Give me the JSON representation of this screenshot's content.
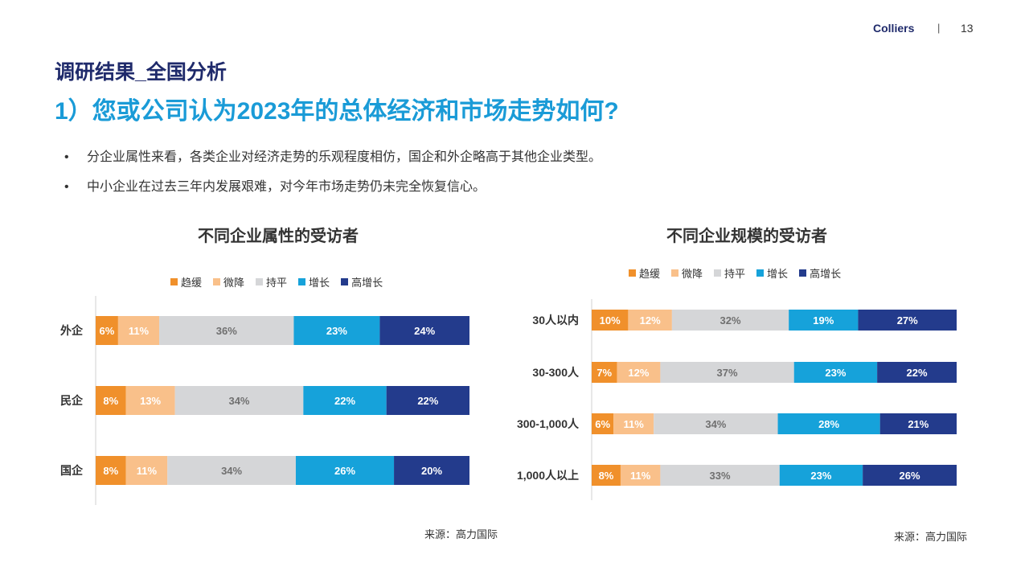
{
  "header": {
    "brand": "Colliers",
    "separator": "|",
    "page_number": "13"
  },
  "subtitle": "调研结果_全国分析",
  "question": "1）您或公司认为2023年的总体经济和市场走势如何?",
  "bullets": [
    "分企业属性来看，各类企业对经济走势的乐观程度相仿，国企和外企略高于其他企业类型。",
    "中小企业在过去三年内发展艰难，对今年市场走势仍未完全恢复信心。"
  ],
  "bullet_symbol": "•",
  "colors": {
    "趋缓": "#f0902b",
    "微降": "#f9c08a",
    "持平": "#d5d6d8",
    "增长": "#16a2da",
    "高增长": "#233b8c"
  },
  "label_colors": {
    "趋缓": "#ffffff",
    "微降": "#ffffff",
    "持平": "#707070",
    "增长": "#ffffff",
    "高增长": "#ffffff"
  },
  "chart_data": [
    {
      "type": "bar",
      "orientation": "horizontal",
      "stacked": true,
      "title": "不同企业属性的受访者",
      "legend": [
        "趋缓",
        "微降",
        "持平",
        "增长",
        "高增长"
      ],
      "legend_position": "top",
      "categories": [
        "外企",
        "民企",
        "国企"
      ],
      "series": [
        {
          "name": "趋缓",
          "values": [
            6,
            8,
            8
          ]
        },
        {
          "name": "微降",
          "values": [
            11,
            13,
            11
          ]
        },
        {
          "name": "持平",
          "values": [
            36,
            34,
            34
          ]
        },
        {
          "name": "增长",
          "values": [
            23,
            22,
            26
          ]
        },
        {
          "name": "高增长",
          "values": [
            24,
            22,
            20
          ]
        }
      ],
      "value_suffix": "%",
      "xlim": [
        0,
        100
      ],
      "source": "来源：高力国际"
    },
    {
      "type": "bar",
      "orientation": "horizontal",
      "stacked": true,
      "title": "不同企业规模的受访者",
      "legend": [
        "趋缓",
        "微降",
        "持平",
        "增长",
        "高增长"
      ],
      "legend_position": "top",
      "categories": [
        "30人以内",
        "30-300人",
        "300-1,000人",
        "1,000人以上"
      ],
      "series": [
        {
          "name": "趋缓",
          "values": [
            10,
            7,
            6,
            8
          ]
        },
        {
          "name": "微降",
          "values": [
            12,
            12,
            11,
            11
          ]
        },
        {
          "name": "持平",
          "values": [
            32,
            37,
            34,
            33
          ]
        },
        {
          "name": "增长",
          "values": [
            19,
            23,
            28,
            23
          ]
        },
        {
          "name": "高增长",
          "values": [
            27,
            22,
            21,
            26
          ]
        }
      ],
      "value_suffix": "%",
      "xlim": [
        0,
        100
      ],
      "source": "来源：高力国际"
    }
  ]
}
